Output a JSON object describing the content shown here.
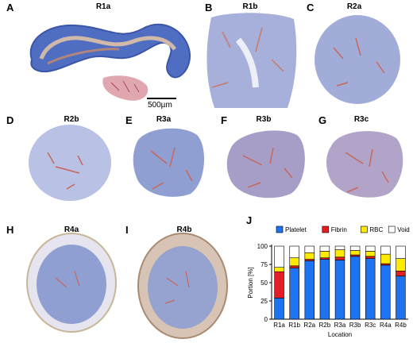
{
  "colors": {
    "tissue_blue": "#8f9fd2",
    "tissue_light": "#c9cfe9",
    "tissue_red": "#c8675a",
    "platelet": "#1e73f0",
    "fibrin": "#e31e24",
    "rbc": "#ffeb00",
    "void": "#ffffff"
  },
  "panels": [
    {
      "letter": "A",
      "title": "R1a"
    },
    {
      "letter": "B",
      "title": "R1b"
    },
    {
      "letter": "C",
      "title": "R2a"
    },
    {
      "letter": "D",
      "title": "R2b"
    },
    {
      "letter": "E",
      "title": "R3a"
    },
    {
      "letter": "F",
      "title": "R3b"
    },
    {
      "letter": "G",
      "title": "R3c"
    },
    {
      "letter": "H",
      "title": "R4a"
    },
    {
      "letter": "I",
      "title": "R4b"
    },
    {
      "letter": "J",
      "title": ""
    }
  ],
  "scale_bar": {
    "label": "500µm"
  },
  "chart_data": {
    "type": "bar",
    "stacked": true,
    "categories": [
      "R1a",
      "R1b",
      "R2a",
      "R2b",
      "R3a",
      "R3b",
      "R3c",
      "R4a",
      "R4b"
    ],
    "series": [
      {
        "name": "Platelet",
        "color": "#1e73f0",
        "values": [
          29,
          70,
          80,
          82,
          81,
          86,
          83,
          74,
          59
        ]
      },
      {
        "name": "Fibrin",
        "color": "#e31e24",
        "values": [
          36,
          3,
          2,
          2,
          4,
          2,
          3,
          2,
          7
        ]
      },
      {
        "name": "RBC",
        "color": "#ffeb00",
        "values": [
          6,
          11,
          9,
          9,
          10,
          6,
          7,
          13,
          17
        ]
      },
      {
        "name": "Void",
        "color": "#ffffff",
        "values": [
          29,
          16,
          9,
          7,
          5,
          6,
          7,
          11,
          17
        ]
      }
    ],
    "xlabel": "Location",
    "ylabel": "Portion [%]",
    "ylim": [
      0,
      100
    ],
    "yticks": [
      0,
      25,
      50,
      75,
      100
    ],
    "legend": "top"
  }
}
